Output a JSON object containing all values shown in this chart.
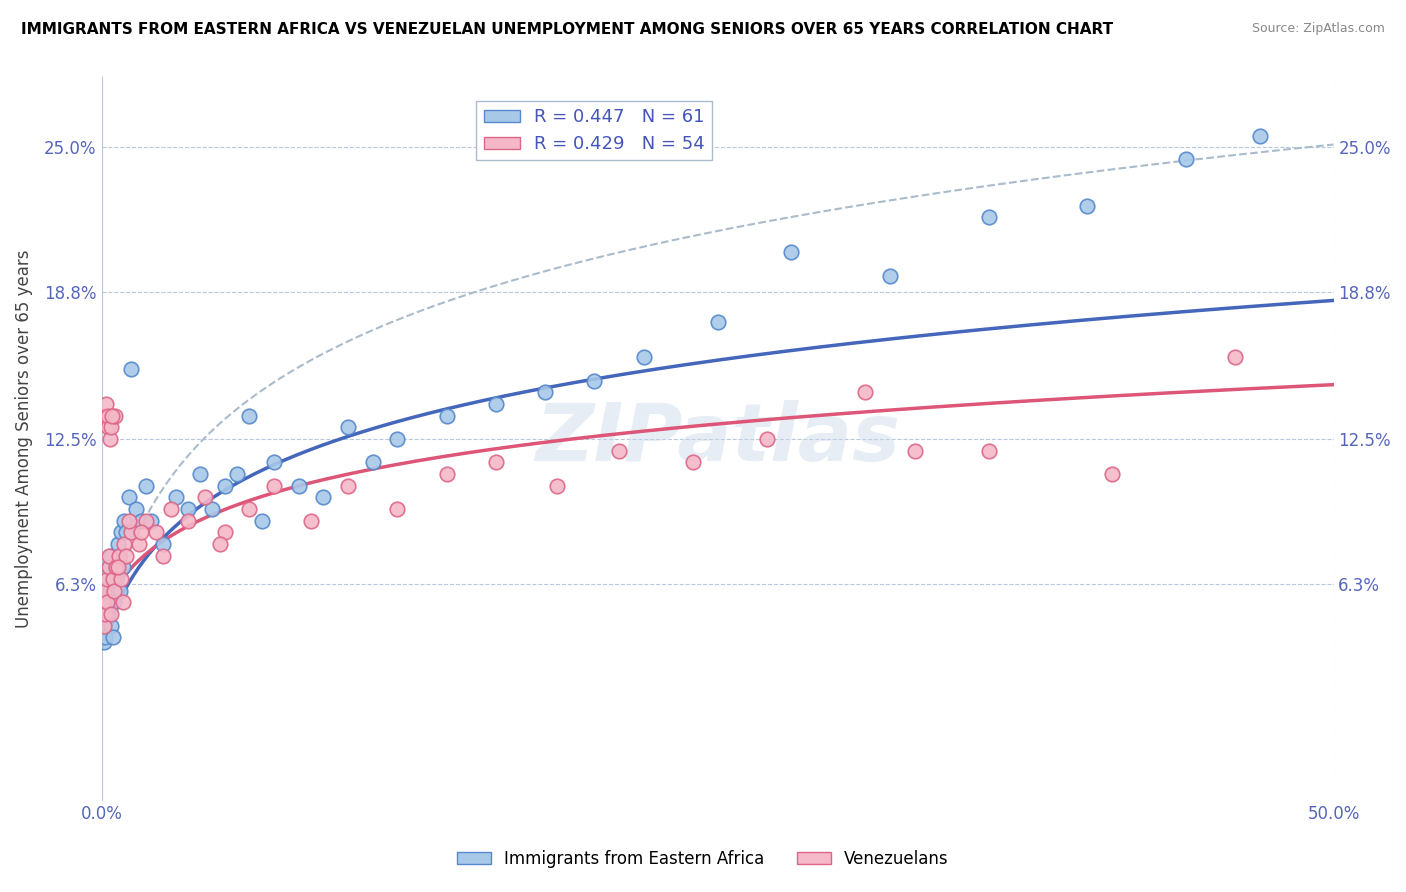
{
  "title": "IMMIGRANTS FROM EASTERN AFRICA VS VENEZUELAN UNEMPLOYMENT AMONG SENIORS OVER 65 YEARS CORRELATION CHART",
  "source": "Source: ZipAtlas.com",
  "xlabel": "",
  "ylabel": "Unemployment Among Seniors over 65 years",
  "xlim": [
    0.0,
    50.0
  ],
  "ylim": [
    -3.0,
    28.0
  ],
  "yticks": [
    6.3,
    12.5,
    18.8,
    25.0
  ],
  "xticks": [
    0.0,
    50.0
  ],
  "xtick_labels": [
    "0.0%",
    "50.0%"
  ],
  "ytick_labels": [
    "6.3%",
    "12.5%",
    "18.8%",
    "25.0%"
  ],
  "blue_R": 0.447,
  "blue_N": 61,
  "pink_R": 0.429,
  "pink_N": 54,
  "blue_color": "#a8c8e8",
  "pink_color": "#f4b8c8",
  "blue_edge_color": "#5588cc",
  "pink_edge_color": "#dd6688",
  "blue_line_color": "#4466bb",
  "pink_line_color": "#dd5577",
  "dashed_line_color": "#aabbcc",
  "watermark": "ZIPatlas",
  "legend_label_blue": "Immigrants from Eastern Africa",
  "legend_label_pink": "Venezuelans",
  "blue_scatter_x": [
    0.05,
    0.08,
    0.1,
    0.12,
    0.15,
    0.18,
    0.2,
    0.22,
    0.25,
    0.28,
    0.3,
    0.32,
    0.35,
    0.38,
    0.4,
    0.42,
    0.45,
    0.48,
    0.5,
    0.55,
    0.6,
    0.65,
    0.7,
    0.75,
    0.8,
    0.85,
    0.9,
    1.0,
    1.1,
    1.2,
    1.4,
    1.6,
    1.8,
    2.0,
    2.5,
    3.0,
    3.5,
    4.0,
    4.5,
    5.0,
    5.5,
    6.0,
    6.5,
    7.0,
    8.0,
    9.0,
    10.0,
    11.0,
    12.0,
    14.0,
    16.0,
    18.0,
    20.0,
    22.0,
    25.0,
    28.0,
    32.0,
    36.0,
    40.0,
    44.0,
    47.0
  ],
  "blue_scatter_y": [
    5.0,
    4.5,
    3.8,
    5.2,
    4.0,
    6.0,
    5.5,
    4.8,
    6.5,
    5.0,
    7.0,
    5.5,
    6.0,
    4.5,
    7.5,
    5.8,
    6.5,
    4.0,
    5.5,
    7.0,
    6.5,
    8.0,
    7.5,
    6.0,
    8.5,
    7.0,
    9.0,
    8.5,
    10.0,
    15.5,
    9.5,
    9.0,
    10.5,
    9.0,
    8.0,
    10.0,
    9.5,
    11.0,
    9.5,
    10.5,
    11.0,
    13.5,
    9.0,
    11.5,
    10.5,
    10.0,
    13.0,
    11.5,
    12.5,
    13.5,
    14.0,
    14.5,
    15.0,
    16.0,
    17.5,
    20.5,
    19.5,
    22.0,
    22.5,
    24.5,
    25.5
  ],
  "pink_scatter_x": [
    0.05,
    0.08,
    0.1,
    0.12,
    0.15,
    0.18,
    0.2,
    0.22,
    0.25,
    0.28,
    0.3,
    0.32,
    0.35,
    0.38,
    0.4,
    0.45,
    0.5,
    0.55,
    0.6,
    0.7,
    0.8,
    0.9,
    1.0,
    1.2,
    1.5,
    1.8,
    2.2,
    2.8,
    3.5,
    4.2,
    5.0,
    6.0,
    7.0,
    8.5,
    10.0,
    12.0,
    14.0,
    16.0,
    18.5,
    21.0,
    24.0,
    27.0,
    31.0,
    36.0,
    41.0,
    46.0,
    0.42,
    0.65,
    0.85,
    1.1,
    1.6,
    2.5,
    4.8,
    33.0
  ],
  "pink_scatter_y": [
    5.5,
    6.0,
    4.5,
    5.0,
    13.5,
    14.0,
    5.5,
    6.5,
    13.0,
    13.5,
    7.0,
    7.5,
    12.5,
    13.0,
    5.0,
    6.5,
    6.0,
    13.5,
    7.0,
    7.5,
    6.5,
    8.0,
    7.5,
    8.5,
    8.0,
    9.0,
    8.5,
    9.5,
    9.0,
    10.0,
    8.5,
    9.5,
    10.5,
    9.0,
    10.5,
    9.5,
    11.0,
    11.5,
    10.5,
    12.0,
    11.5,
    12.5,
    14.5,
    12.0,
    11.0,
    16.0,
    13.5,
    7.0,
    5.5,
    9.0,
    8.5,
    7.5,
    8.0,
    12.0
  ],
  "blue_curve_a": 3.5,
  "blue_curve_b": 3.8,
  "pink_curve_a": 5.0,
  "pink_curve_b": 2.5,
  "dashed_curve_a": 3.5,
  "dashed_curve_b": 5.5
}
